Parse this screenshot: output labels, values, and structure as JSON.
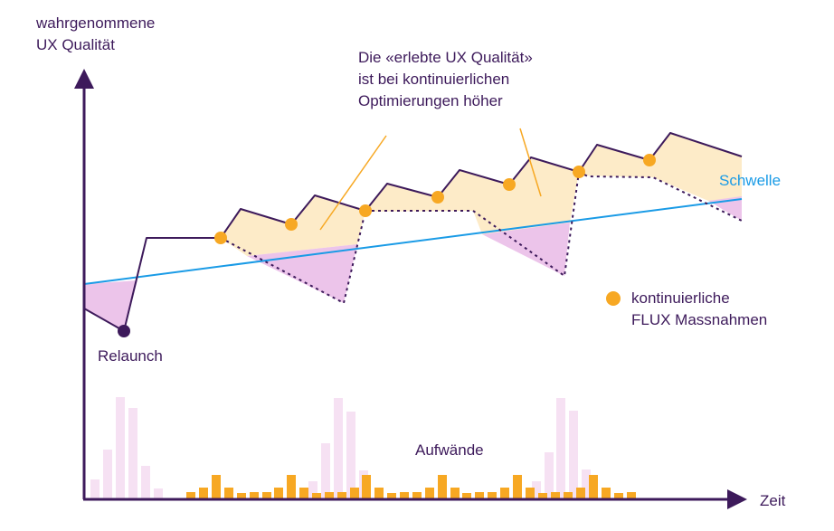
{
  "y_axis_label": [
    "wahrgenommene",
    "UX Qualität"
  ],
  "x_axis_label": "Zeit",
  "annotation": [
    "Die «erlebte UX Qualität»",
    "ist bei kontinuierlichen",
    "Optimierungen höher"
  ],
  "relaunch_label": "Relaunch",
  "threshold_label": "Schwelle",
  "legend_label": [
    "kontinuierliche",
    "FLUX Massnahmen"
  ],
  "effort_label": "Aufwände",
  "colors": {
    "axis": "#3d1a5b",
    "quality_line": "#3d1a5b",
    "threshold_line": "#1a9be6",
    "flux_marker": "#f7a823",
    "benefit_fill": "#fdebc8",
    "deficit_fill": "#ecc4ea",
    "relaunch_effort_bars": "#f6e1f3",
    "flux_effort_bars": "#f7a823",
    "annotation_leader": "#f7a823"
  }
}
